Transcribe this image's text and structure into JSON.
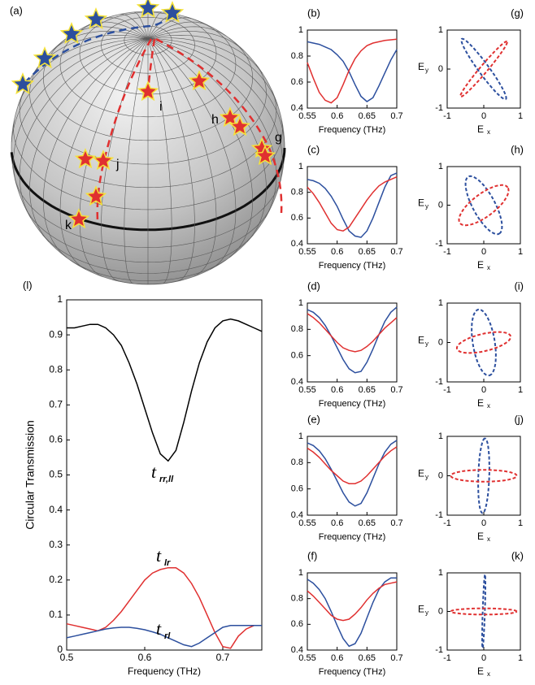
{
  "sphere": {
    "panel_label": "(a)",
    "point_labels": [
      "g",
      "h",
      "i",
      "j",
      "k"
    ]
  },
  "chart_data": [
    {
      "type": "line",
      "panel_label": "(l)",
      "xlabel": "Frequency (THz)",
      "ylabel": "Circular Transmission",
      "xlim": [
        0.5,
        0.75
      ],
      "xticks": [
        0.5,
        0.6,
        0.7
      ],
      "ylim": [
        0,
        1
      ],
      "yticks": [
        0,
        0.1,
        0.2,
        0.3,
        0.4,
        0.5,
        0.6,
        0.7,
        0.8,
        0.9,
        1
      ],
      "x": [
        0.5,
        0.51,
        0.52,
        0.53,
        0.54,
        0.55,
        0.56,
        0.57,
        0.58,
        0.59,
        0.6,
        0.61,
        0.62,
        0.63,
        0.64,
        0.65,
        0.66,
        0.67,
        0.68,
        0.69,
        0.7,
        0.71,
        0.72,
        0.73,
        0.74,
        0.75
      ],
      "series": [
        {
          "name": "t",
          "subscript": "rr,ll",
          "color": "#000000",
          "values": [
            0.92,
            0.92,
            0.925,
            0.93,
            0.93,
            0.92,
            0.9,
            0.87,
            0.82,
            0.76,
            0.69,
            0.62,
            0.56,
            0.54,
            0.57,
            0.65,
            0.74,
            0.82,
            0.88,
            0.92,
            0.94,
            0.945,
            0.94,
            0.93,
            0.92,
            0.91
          ]
        },
        {
          "name": "t",
          "subscript": "lr",
          "color": "#e03030",
          "values": [
            0.075,
            0.07,
            0.065,
            0.06,
            0.055,
            0.065,
            0.085,
            0.11,
            0.14,
            0.17,
            0.2,
            0.22,
            0.23,
            0.235,
            0.235,
            0.22,
            0.19,
            0.15,
            0.1,
            0.05,
            0.01,
            0.005,
            0.04,
            0.06,
            0.07,
            0.07
          ]
        },
        {
          "name": "t",
          "subscript": "rl",
          "color": "#2c4f9e",
          "values": [
            0.035,
            0.04,
            0.045,
            0.05,
            0.055,
            0.06,
            0.063,
            0.065,
            0.065,
            0.062,
            0.058,
            0.052,
            0.045,
            0.035,
            0.025,
            0.015,
            0.01,
            0.02,
            0.035,
            0.05,
            0.065,
            0.07,
            0.07,
            0.07,
            0.07,
            0.07
          ]
        }
      ]
    },
    {
      "type": "line",
      "panel_label": "(b)",
      "xlabel": "Frequency (THz)",
      "xlim": [
        0.55,
        0.7
      ],
      "xticks": [
        0.55,
        0.6,
        0.65,
        0.7
      ],
      "ylim": [
        0.4,
        1
      ],
      "yticks": [
        0.4,
        0.6,
        0.8,
        1
      ],
      "x": [
        0.55,
        0.56,
        0.57,
        0.58,
        0.59,
        0.6,
        0.61,
        0.62,
        0.63,
        0.64,
        0.65,
        0.66,
        0.67,
        0.68,
        0.69,
        0.7
      ],
      "series": [
        {
          "color": "#2c4f9e",
          "values": [
            0.91,
            0.9,
            0.89,
            0.87,
            0.85,
            0.81,
            0.76,
            0.68,
            0.58,
            0.49,
            0.45,
            0.48,
            0.57,
            0.67,
            0.77,
            0.85
          ]
        },
        {
          "color": "#e03030",
          "values": [
            0.75,
            0.63,
            0.52,
            0.46,
            0.44,
            0.48,
            0.58,
            0.69,
            0.78,
            0.84,
            0.88,
            0.9,
            0.91,
            0.92,
            0.925,
            0.93
          ]
        }
      ]
    },
    {
      "type": "line",
      "panel_label": "(c)",
      "xlabel": "Frequency (THz)",
      "xlim": [
        0.55,
        0.7
      ],
      "xticks": [
        0.55,
        0.6,
        0.65,
        0.7
      ],
      "ylim": [
        0.4,
        1
      ],
      "yticks": [
        0.4,
        0.6,
        0.8,
        1
      ],
      "x": [
        0.55,
        0.56,
        0.57,
        0.58,
        0.59,
        0.6,
        0.61,
        0.62,
        0.63,
        0.64,
        0.65,
        0.66,
        0.67,
        0.68,
        0.69,
        0.7
      ],
      "series": [
        {
          "color": "#2c4f9e",
          "values": [
            0.9,
            0.89,
            0.87,
            0.83,
            0.77,
            0.69,
            0.59,
            0.5,
            0.46,
            0.45,
            0.5,
            0.6,
            0.72,
            0.84,
            0.93,
            0.95
          ]
        },
        {
          "color": "#e03030",
          "values": [
            0.84,
            0.79,
            0.72,
            0.64,
            0.56,
            0.51,
            0.5,
            0.53,
            0.6,
            0.67,
            0.74,
            0.8,
            0.85,
            0.88,
            0.9,
            0.92
          ]
        }
      ]
    },
    {
      "type": "line",
      "panel_label": "(d)",
      "xlabel": "Frequency (THz)",
      "xlim": [
        0.55,
        0.7
      ],
      "xticks": [
        0.55,
        0.6,
        0.65,
        0.7
      ],
      "ylim": [
        0.4,
        1
      ],
      "yticks": [
        0.4,
        0.6,
        0.8,
        1
      ],
      "x": [
        0.55,
        0.56,
        0.57,
        0.58,
        0.59,
        0.6,
        0.61,
        0.62,
        0.63,
        0.64,
        0.65,
        0.66,
        0.67,
        0.68,
        0.69,
        0.7
      ],
      "series": [
        {
          "color": "#2c4f9e",
          "values": [
            0.95,
            0.93,
            0.89,
            0.83,
            0.75,
            0.66,
            0.57,
            0.5,
            0.47,
            0.48,
            0.55,
            0.65,
            0.76,
            0.86,
            0.93,
            0.97
          ]
        },
        {
          "color": "#e03030",
          "values": [
            0.92,
            0.89,
            0.85,
            0.8,
            0.75,
            0.7,
            0.66,
            0.64,
            0.63,
            0.64,
            0.67,
            0.71,
            0.76,
            0.81,
            0.85,
            0.89
          ]
        }
      ]
    },
    {
      "type": "line",
      "panel_label": "(e)",
      "xlabel": "Frequency (THz)",
      "xlim": [
        0.55,
        0.7
      ],
      "xticks": [
        0.55,
        0.6,
        0.65,
        0.7
      ],
      "ylim": [
        0.4,
        1
      ],
      "yticks": [
        0.4,
        0.6,
        0.8,
        1
      ],
      "x": [
        0.55,
        0.56,
        0.57,
        0.58,
        0.59,
        0.6,
        0.61,
        0.62,
        0.63,
        0.64,
        0.65,
        0.66,
        0.67,
        0.68,
        0.69,
        0.7
      ],
      "series": [
        {
          "color": "#2c4f9e",
          "values": [
            0.95,
            0.93,
            0.89,
            0.83,
            0.75,
            0.66,
            0.57,
            0.5,
            0.47,
            0.49,
            0.57,
            0.68,
            0.79,
            0.88,
            0.94,
            0.97
          ]
        },
        {
          "color": "#e03030",
          "values": [
            0.91,
            0.88,
            0.84,
            0.79,
            0.74,
            0.7,
            0.66,
            0.64,
            0.64,
            0.66,
            0.7,
            0.75,
            0.8,
            0.85,
            0.89,
            0.92
          ]
        }
      ]
    },
    {
      "type": "line",
      "panel_label": "(f)",
      "xlabel": "Frequency (THz)",
      "xlim": [
        0.55,
        0.7
      ],
      "xticks": [
        0.55,
        0.6,
        0.65,
        0.7
      ],
      "ylim": [
        0.4,
        1
      ],
      "yticks": [
        0.4,
        0.6,
        0.8,
        1
      ],
      "x": [
        0.55,
        0.56,
        0.57,
        0.58,
        0.59,
        0.6,
        0.61,
        0.62,
        0.63,
        0.64,
        0.65,
        0.66,
        0.67,
        0.68,
        0.69,
        0.7
      ],
      "series": [
        {
          "color": "#2c4f9e",
          "values": [
            0.95,
            0.92,
            0.87,
            0.8,
            0.7,
            0.59,
            0.49,
            0.43,
            0.45,
            0.53,
            0.65,
            0.77,
            0.87,
            0.93,
            0.96,
            0.96
          ]
        },
        {
          "color": "#e03030",
          "values": [
            0.86,
            0.82,
            0.77,
            0.72,
            0.67,
            0.64,
            0.63,
            0.64,
            0.68,
            0.73,
            0.79,
            0.84,
            0.88,
            0.91,
            0.92,
            0.93
          ]
        }
      ]
    },
    {
      "type": "ellipse",
      "panel_label": "(g)",
      "xlabel": "E",
      "xlabel_sub": "x",
      "ylabel": "E",
      "ylabel_sub": "y",
      "xlim": [
        -1,
        1
      ],
      "xticks": [
        -1,
        0,
        1
      ],
      "ylim": [
        -1,
        1
      ],
      "yticks": [
        -1,
        0,
        1
      ],
      "series": [
        {
          "color": "#2c4f9e",
          "semi_major": 0.98,
          "semi_minor": 0.14,
          "angle": -52
        },
        {
          "color": "#e03030",
          "semi_major": 0.95,
          "semi_minor": 0.1,
          "angle": 48
        }
      ]
    },
    {
      "type": "ellipse",
      "panel_label": "(h)",
      "xlabel": "E",
      "xlabel_sub": "x",
      "ylabel": "E",
      "ylabel_sub": "y",
      "xlim": [
        -1,
        1
      ],
      "xticks": [
        -1,
        0,
        1
      ],
      "ylim": [
        -1,
        1
      ],
      "yticks": [
        -1,
        0,
        1
      ],
      "series": [
        {
          "color": "#2c4f9e",
          "semi_major": 0.85,
          "semi_minor": 0.3,
          "angle": -60
        },
        {
          "color": "#e03030",
          "semi_major": 0.8,
          "semi_minor": 0.3,
          "angle": 35
        }
      ]
    },
    {
      "type": "ellipse",
      "panel_label": "(i)",
      "xlabel": "E",
      "xlabel_sub": "x",
      "ylabel": "E",
      "ylabel_sub": "y",
      "xlim": [
        -1,
        1
      ],
      "xticks": [
        -1,
        0,
        1
      ],
      "ylim": [
        -1,
        1
      ],
      "yticks": [
        -1,
        0,
        1
      ],
      "series": [
        {
          "color": "#2c4f9e",
          "semi_major": 0.85,
          "semi_minor": 0.3,
          "angle": -80
        },
        {
          "color": "#e03030",
          "semi_major": 0.75,
          "semi_minor": 0.22,
          "angle": 12
        }
      ]
    },
    {
      "type": "ellipse",
      "panel_label": "(j)",
      "xlabel": "E",
      "xlabel_sub": "x",
      "ylabel": "E",
      "ylabel_sub": "y",
      "xlim": [
        -1,
        1
      ],
      "xticks": [
        -1,
        0,
        1
      ],
      "ylim": [
        -1,
        1
      ],
      "yticks": [
        -1,
        0,
        1
      ],
      "series": [
        {
          "color": "#2c4f9e",
          "semi_major": 0.95,
          "semi_minor": 0.15,
          "angle": 88
        },
        {
          "color": "#e03030",
          "semi_major": 0.9,
          "semi_minor": 0.15,
          "angle": 0
        }
      ]
    },
    {
      "type": "ellipse",
      "panel_label": "(k)",
      "xlabel": "E",
      "xlabel_sub": "x",
      "ylabel": "E",
      "ylabel_sub": "y",
      "xlim": [
        -1,
        1
      ],
      "xticks": [
        -1,
        0,
        1
      ],
      "ylim": [
        -1,
        1
      ],
      "yticks": [
        -1,
        0,
        1
      ],
      "series": [
        {
          "color": "#2c4f9e",
          "semi_major": 0.95,
          "semi_minor": 0.03,
          "angle": 88
        },
        {
          "color": "#e03030",
          "semi_major": 0.9,
          "semi_minor": 0.08,
          "angle": 0
        }
      ]
    }
  ]
}
